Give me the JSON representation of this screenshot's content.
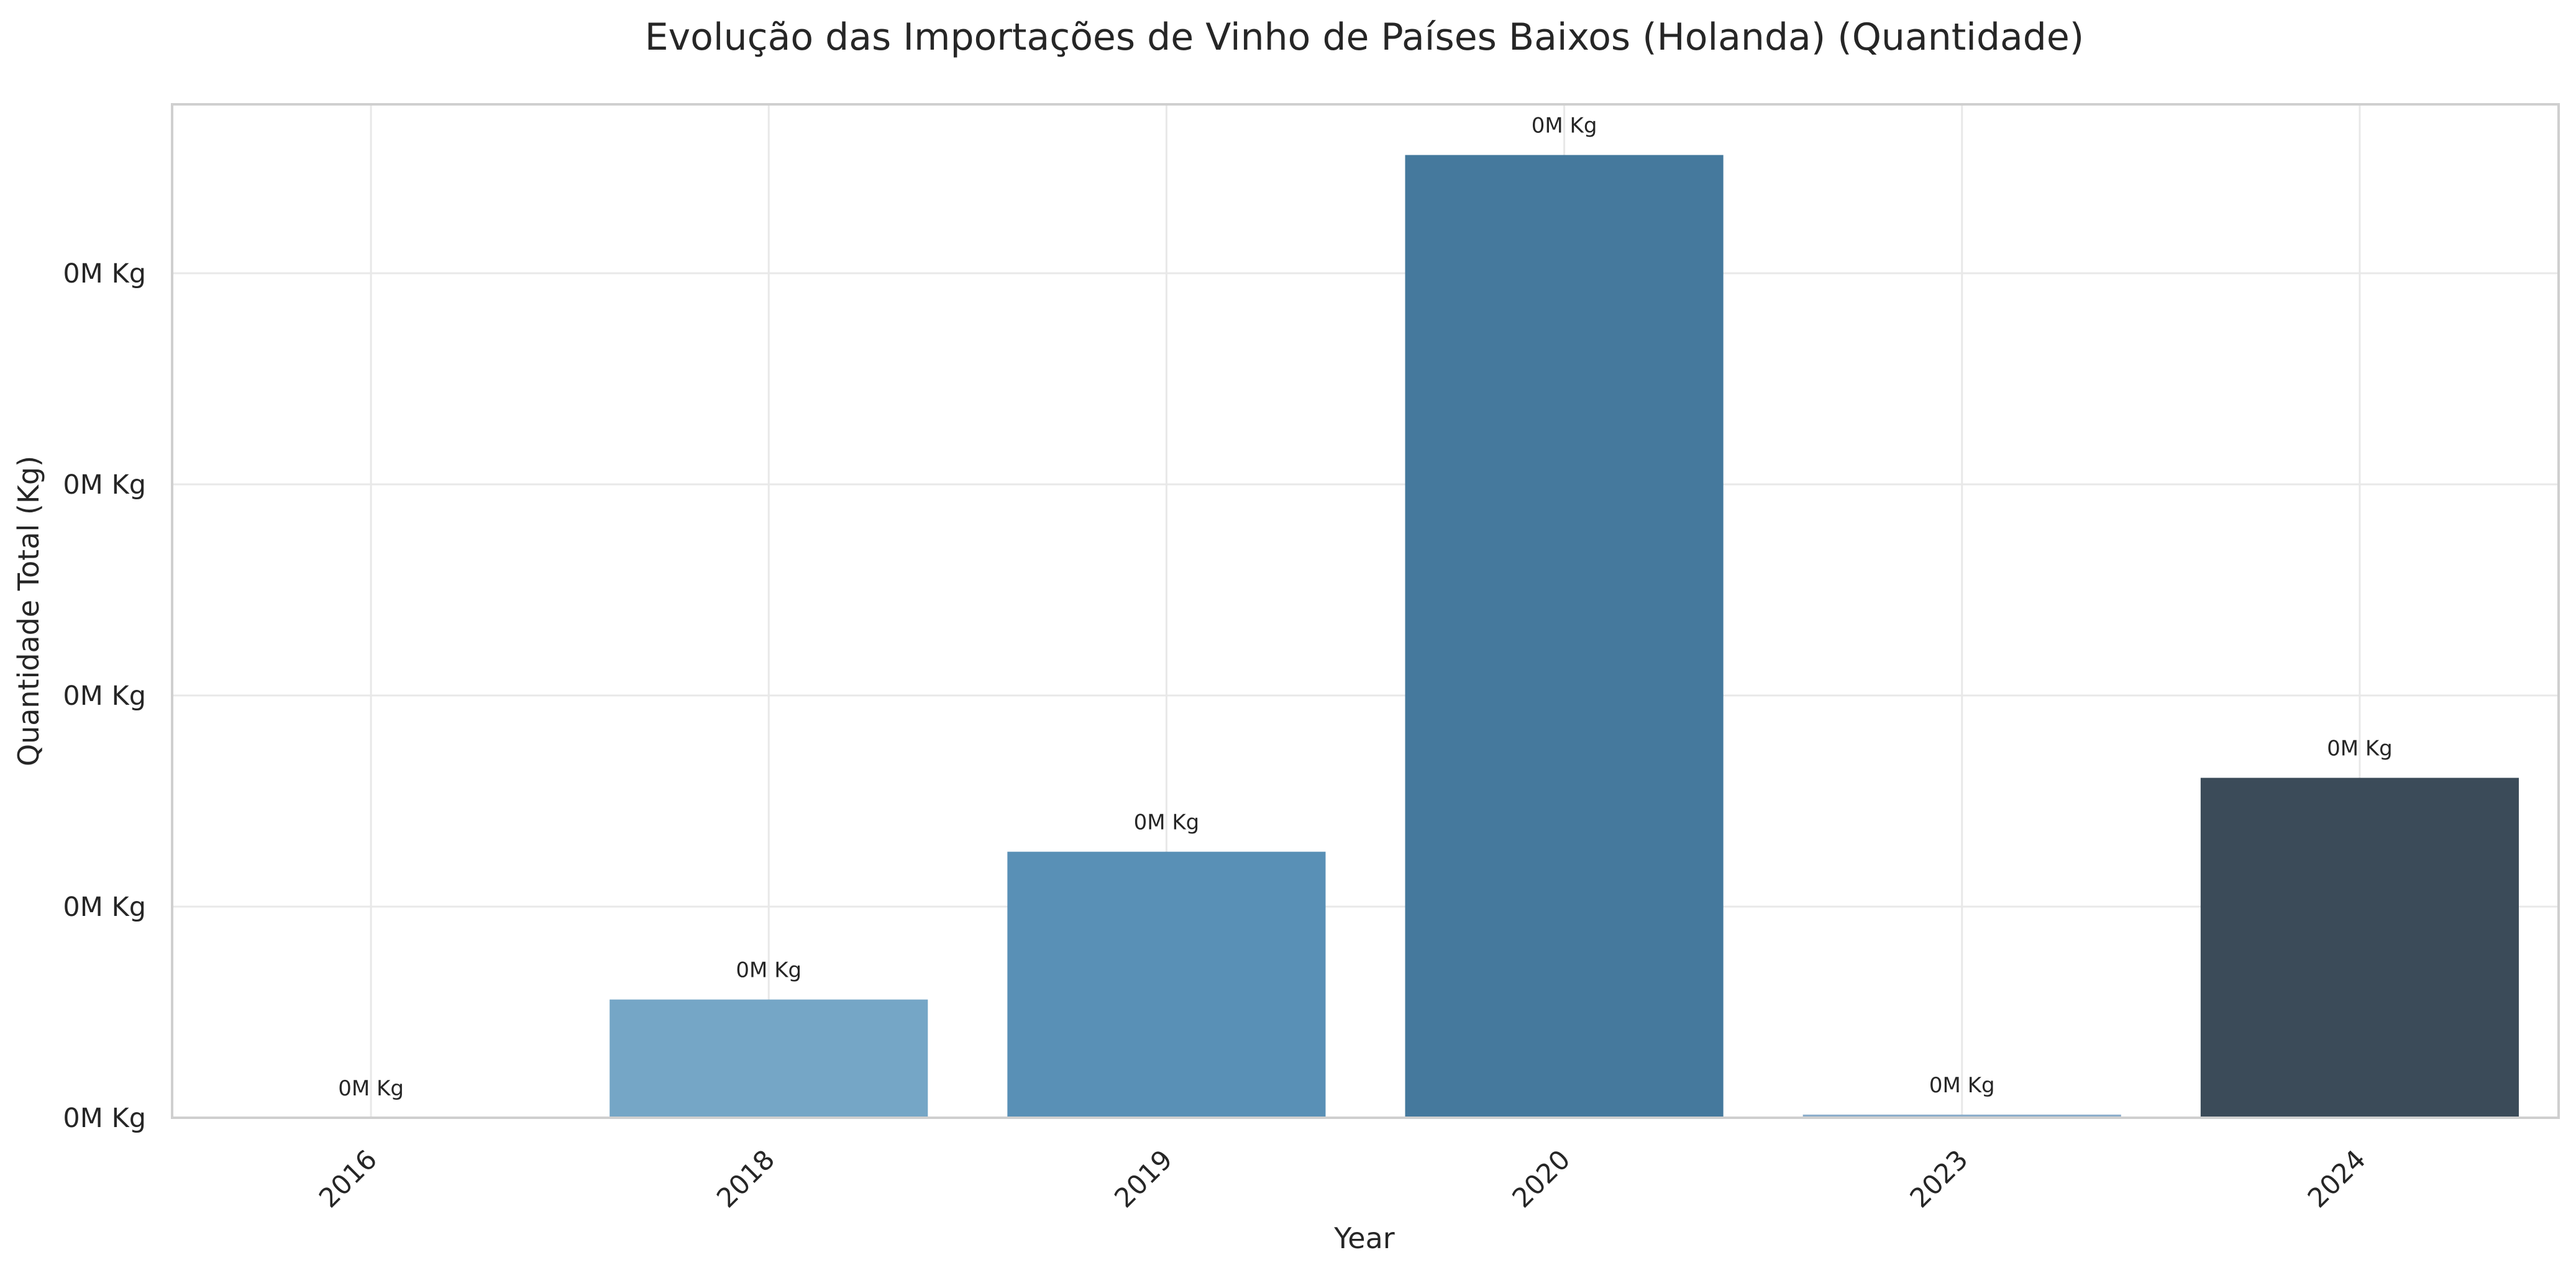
{
  "chart_data": {
    "type": "bar",
    "title": "Evolução das Importações de Vinho de Países Baixos (Holanda) (Quantidade)",
    "xlabel": "Year",
    "ylabel": "Quantidade Total (Kg)",
    "categories": [
      "2016",
      "2018",
      "2019",
      "2020",
      "2023",
      "2024"
    ],
    "values": [
      0,
      560,
      1260,
      4560,
      15,
      1610
    ],
    "data_labels": [
      "0M Kg",
      "0M Kg",
      "0M Kg",
      "0M Kg",
      "0M Kg",
      "0M Kg"
    ],
    "colors": [
      "#9ec3db",
      "#75a6c6",
      "#5990b6",
      "#45799d",
      "#8caecb",
      "#3b4b59"
    ],
    "ylim": [
      0,
      4800
    ],
    "yticks": [
      0,
      1000,
      2000,
      3000,
      4000
    ],
    "ytick_labels": [
      "0M Kg",
      "0M Kg",
      "0M Kg",
      "0M Kg",
      "0M Kg"
    ],
    "grid": true,
    "legend": "none"
  }
}
